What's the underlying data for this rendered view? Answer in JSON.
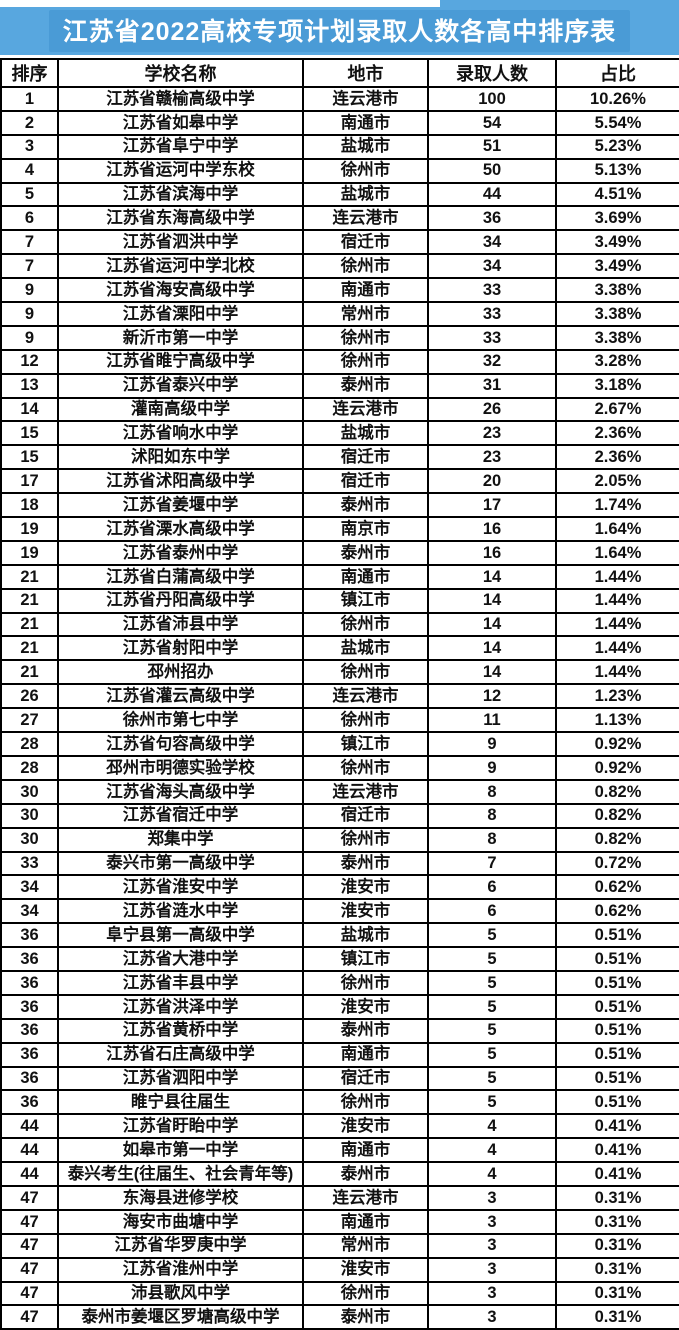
{
  "title": "江苏省2022高校专项计划录取人数各高中排序表",
  "colors": {
    "title_bar": "#58a7df",
    "title_highlight": "#4a9bd6",
    "title_text": "#ffffff",
    "table_border": "#000000",
    "table_text": "#111111",
    "table_bg": "#ffffff"
  },
  "chart_data": {
    "type": "table",
    "title": "江苏省2022高校专项计划录取人数各高中排序表",
    "columns": [
      "排序",
      "学校名称",
      "地市",
      "录取人数",
      "占比"
    ],
    "rows": [
      [
        "1",
        "江苏省赣榆高级中学",
        "连云港市",
        "100",
        "10.26%"
      ],
      [
        "2",
        "江苏省如皋中学",
        "南通市",
        "54",
        "5.54%"
      ],
      [
        "3",
        "江苏省阜宁中学",
        "盐城市",
        "51",
        "5.23%"
      ],
      [
        "4",
        "江苏省运河中学东校",
        "徐州市",
        "50",
        "5.13%"
      ],
      [
        "5",
        "江苏省滨海中学",
        "盐城市",
        "44",
        "4.51%"
      ],
      [
        "6",
        "江苏省东海高级中学",
        "连云港市",
        "36",
        "3.69%"
      ],
      [
        "7",
        "江苏省泗洪中学",
        "宿迁市",
        "34",
        "3.49%"
      ],
      [
        "7",
        "江苏省运河中学北校",
        "徐州市",
        "34",
        "3.49%"
      ],
      [
        "9",
        "江苏省海安高级中学",
        "南通市",
        "33",
        "3.38%"
      ],
      [
        "9",
        "江苏省溧阳中学",
        "常州市",
        "33",
        "3.38%"
      ],
      [
        "9",
        "新沂市第一中学",
        "徐州市",
        "33",
        "3.38%"
      ],
      [
        "12",
        "江苏省睢宁高级中学",
        "徐州市",
        "32",
        "3.28%"
      ],
      [
        "13",
        "江苏省泰兴中学",
        "泰州市",
        "31",
        "3.18%"
      ],
      [
        "14",
        "灌南高级中学",
        "连云港市",
        "26",
        "2.67%"
      ],
      [
        "15",
        "江苏省响水中学",
        "盐城市",
        "23",
        "2.36%"
      ],
      [
        "15",
        "沭阳如东中学",
        "宿迁市",
        "23",
        "2.36%"
      ],
      [
        "17",
        "江苏省沭阳高级中学",
        "宿迁市",
        "20",
        "2.05%"
      ],
      [
        "18",
        "江苏省姜堰中学",
        "泰州市",
        "17",
        "1.74%"
      ],
      [
        "19",
        "江苏省溧水高级中学",
        "南京市",
        "16",
        "1.64%"
      ],
      [
        "19",
        "江苏省泰州中学",
        "泰州市",
        "16",
        "1.64%"
      ],
      [
        "21",
        "江苏省白蒲高级中学",
        "南通市",
        "14",
        "1.44%"
      ],
      [
        "21",
        "江苏省丹阳高级中学",
        "镇江市",
        "14",
        "1.44%"
      ],
      [
        "21",
        "江苏省沛县中学",
        "徐州市",
        "14",
        "1.44%"
      ],
      [
        "21",
        "江苏省射阳中学",
        "盐城市",
        "14",
        "1.44%"
      ],
      [
        "21",
        "邳州招办",
        "徐州市",
        "14",
        "1.44%"
      ],
      [
        "26",
        "江苏省灌云高级中学",
        "连云港市",
        "12",
        "1.23%"
      ],
      [
        "27",
        "徐州市第七中学",
        "徐州市",
        "11",
        "1.13%"
      ],
      [
        "28",
        "江苏省句容高级中学",
        "镇江市",
        "9",
        "0.92%"
      ],
      [
        "28",
        "邳州市明德实验学校",
        "徐州市",
        "9",
        "0.92%"
      ],
      [
        "30",
        "江苏省海头高级中学",
        "连云港市",
        "8",
        "0.82%"
      ],
      [
        "30",
        "江苏省宿迁中学",
        "宿迁市",
        "8",
        "0.82%"
      ],
      [
        "30",
        "郑集中学",
        "徐州市",
        "8",
        "0.82%"
      ],
      [
        "33",
        "泰兴市第一高级中学",
        "泰州市",
        "7",
        "0.72%"
      ],
      [
        "34",
        "江苏省淮安中学",
        "淮安市",
        "6",
        "0.62%"
      ],
      [
        "34",
        "江苏省涟水中学",
        "淮安市",
        "6",
        "0.62%"
      ],
      [
        "36",
        "阜宁县第一高级中学",
        "盐城市",
        "5",
        "0.51%"
      ],
      [
        "36",
        "江苏省大港中学",
        "镇江市",
        "5",
        "0.51%"
      ],
      [
        "36",
        "江苏省丰县中学",
        "徐州市",
        "5",
        "0.51%"
      ],
      [
        "36",
        "江苏省洪泽中学",
        "淮安市",
        "5",
        "0.51%"
      ],
      [
        "36",
        "江苏省黄桥中学",
        "泰州市",
        "5",
        "0.51%"
      ],
      [
        "36",
        "江苏省石庄高级中学",
        "南通市",
        "5",
        "0.51%"
      ],
      [
        "36",
        "江苏省泗阳中学",
        "宿迁市",
        "5",
        "0.51%"
      ],
      [
        "36",
        "睢宁县往届生",
        "徐州市",
        "5",
        "0.51%"
      ],
      [
        "44",
        "江苏省盱眙中学",
        "淮安市",
        "4",
        "0.41%"
      ],
      [
        "44",
        "如皋市第一中学",
        "南通市",
        "4",
        "0.41%"
      ],
      [
        "44",
        "泰兴考生(往届生、社会青年等)",
        "泰州市",
        "4",
        "0.41%"
      ],
      [
        "47",
        "东海县进修学校",
        "连云港市",
        "3",
        "0.31%"
      ],
      [
        "47",
        "海安市曲塘中学",
        "南通市",
        "3",
        "0.31%"
      ],
      [
        "47",
        "江苏省华罗庚中学",
        "常州市",
        "3",
        "0.31%"
      ],
      [
        "47",
        "江苏省淮州中学",
        "淮安市",
        "3",
        "0.31%"
      ],
      [
        "47",
        "沛县歌风中学",
        "徐州市",
        "3",
        "0.31%"
      ],
      [
        "47",
        "泰州市姜堰区罗塘高级中学",
        "泰州市",
        "3",
        "0.31%"
      ]
    ]
  }
}
